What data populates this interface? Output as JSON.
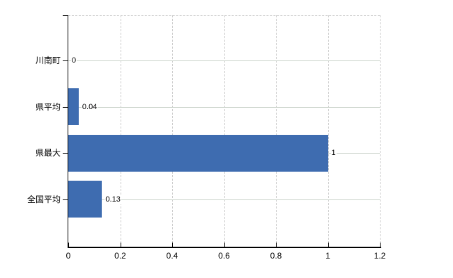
{
  "chart_data": {
    "type": "bar",
    "orientation": "horizontal",
    "title": "",
    "xlabel": "",
    "ylabel": "",
    "legend": false,
    "grid": true,
    "categories": [
      "川南町",
      "県平均",
      "県最大",
      "全国平均"
    ],
    "values": [
      0,
      0.04,
      1,
      0.13
    ],
    "value_labels": [
      "0",
      "0.04",
      "1",
      "0.13"
    ],
    "x_axis": {
      "min": 0,
      "max": 1.2,
      "ticks": [
        0,
        0.2,
        0.4,
        0.6,
        0.8,
        1,
        1.2
      ],
      "tick_labels": [
        "0",
        "0.2",
        "0.4",
        "0.6",
        "0.8",
        "1",
        "1.2"
      ]
    },
    "colors": {
      "bar": "#3e6cb0",
      "axis": "#000000",
      "h_gridline": "#c9d2c9",
      "v_gridline": "#cccccc",
      "label_text": "#000000",
      "background": "#ffffff"
    }
  }
}
